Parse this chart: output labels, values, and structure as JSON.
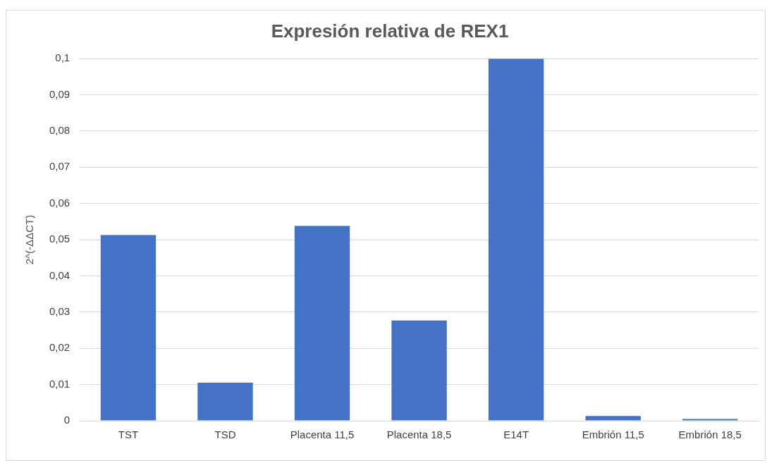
{
  "chart_data": {
    "type": "bar",
    "title": "Expresión relativa de REX1",
    "ylabel": "2^(-ΔΔCT)",
    "categories": [
      "TST",
      "TSD",
      "Placenta 11,5",
      "Placenta 18,5",
      "E14T",
      "Embrión 11,5",
      "Embrión 18,5"
    ],
    "values": [
      0.0513,
      0.0105,
      0.0538,
      0.0277,
      0.1,
      0.0013,
      0.0005
    ],
    "color": "#4472c4",
    "ylim": [
      0,
      0.1
    ],
    "yticks": [
      {
        "value": 0,
        "label": "0"
      },
      {
        "value": 0.01,
        "label": "0,01"
      },
      {
        "value": 0.02,
        "label": "0,02"
      },
      {
        "value": 0.03,
        "label": "0,03"
      },
      {
        "value": 0.04,
        "label": "0,04"
      },
      {
        "value": 0.05,
        "label": "0,05"
      },
      {
        "value": 0.06,
        "label": "0,06"
      },
      {
        "value": 0.07,
        "label": "0,07"
      },
      {
        "value": 0.08,
        "label": "0,08"
      },
      {
        "value": 0.09,
        "label": "0,09"
      },
      {
        "value": 0.1,
        "label": "0,1"
      }
    ],
    "grid": true,
    "legend": false
  }
}
